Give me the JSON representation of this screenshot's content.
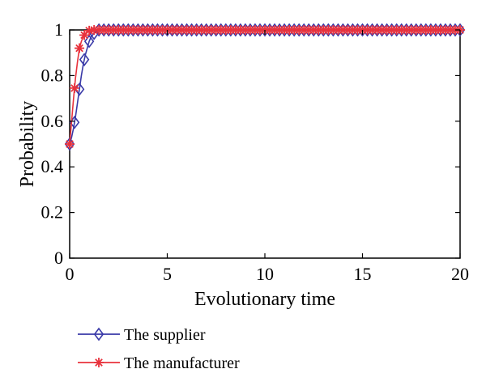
{
  "chart_data": {
    "type": "line",
    "xlabel": "Evolutionary time",
    "ylabel": "Probability",
    "xlim": [
      0,
      20
    ],
    "ylim": [
      0,
      1
    ],
    "xticks": [
      0,
      5,
      10,
      15,
      20
    ],
    "yticks": [
      0,
      0.2,
      0.4,
      0.6,
      0.8,
      1
    ],
    "ytick_labels": [
      "0",
      "0.2",
      "0.4",
      "0.6",
      "0.8",
      "1"
    ],
    "grid": false,
    "legend_position": "below",
    "series": [
      {
        "name": "The supplier",
        "color": "#3a3aa8",
        "marker": "diamond",
        "x": [
          0,
          0.1,
          0.2,
          0.3,
          0.4,
          0.5,
          0.6,
          0.7,
          0.8,
          0.9,
          1.0,
          1.1,
          1.2,
          1.3,
          1.4,
          1.5,
          1.7,
          2.0,
          2.5,
          3,
          4,
          5,
          6,
          7,
          8,
          9,
          10,
          11,
          12,
          13,
          14,
          15,
          16,
          17,
          18,
          19,
          20
        ],
        "y": [
          0.5,
          0.53,
          0.57,
          0.62,
          0.68,
          0.74,
          0.8,
          0.85,
          0.89,
          0.92,
          0.95,
          0.97,
          0.98,
          0.99,
          0.995,
          1.0,
          1.0,
          1.0,
          1.0,
          1.0,
          1.0,
          1.0,
          1.0,
          1.0,
          1.0,
          1.0,
          1.0,
          1.0,
          1.0,
          1.0,
          1.0,
          1.0,
          1.0,
          1.0,
          1.0,
          1.0,
          1.0
        ]
      },
      {
        "name": "The manufacturer",
        "color": "#e8323c",
        "marker": "star",
        "x": [
          0,
          0.1,
          0.2,
          0.3,
          0.4,
          0.5,
          0.6,
          0.7,
          0.8,
          0.9,
          1.0,
          1.1,
          1.2,
          1.3,
          1.4,
          1.5,
          1.7,
          2.0,
          2.5,
          3,
          4,
          5,
          6,
          7,
          8,
          9,
          10,
          11,
          12,
          13,
          14,
          15,
          16,
          17,
          18,
          19,
          20
        ],
        "y": [
          0.5,
          0.6,
          0.7,
          0.79,
          0.86,
          0.92,
          0.95,
          0.97,
          0.985,
          0.993,
          0.997,
          1.0,
          1.0,
          1.0,
          1.0,
          1.0,
          1.0,
          1.0,
          1.0,
          1.0,
          1.0,
          1.0,
          1.0,
          1.0,
          1.0,
          1.0,
          1.0,
          1.0,
          1.0,
          1.0,
          1.0,
          1.0,
          1.0,
          1.0,
          1.0,
          1.0,
          1.0
        ]
      }
    ]
  }
}
